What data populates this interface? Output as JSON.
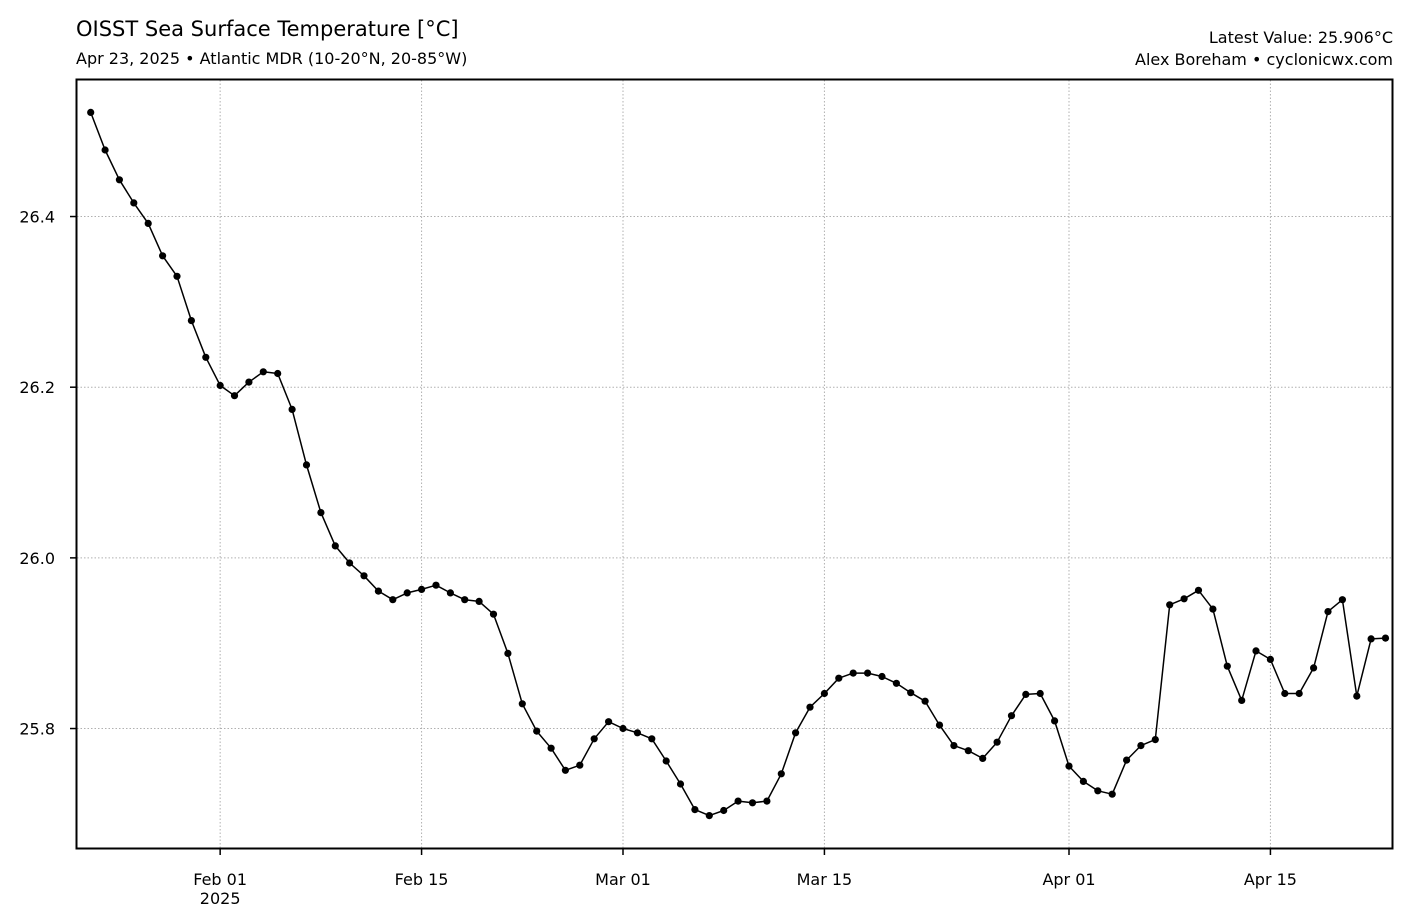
{
  "header": {
    "title": "OISST Sea Surface Temperature [°C]",
    "subtitle": "Apr 23, 2025 • Atlantic MDR (10-20°N, 20-85°W)",
    "latest_value": "Latest Value: 25.906°C",
    "credit": "Alex Boreham • cyclonicwx.com"
  },
  "chart_data": {
    "type": "line",
    "title": "OISST Sea Surface Temperature [°C]",
    "subtitle": "Apr 23, 2025 • Atlantic MDR (10-20°N, 20-85°W)",
    "xlabel": "",
    "ylabel": "",
    "xlim": [
      "2025-01-22",
      "2025-04-23"
    ],
    "ylim": [
      25.66,
      26.56
    ],
    "grid": true,
    "legend": "none",
    "line_color": "#000000",
    "marker": "circle",
    "x_ticks": [
      {
        "date": "2025-02-01",
        "label": "Feb 01",
        "sublabel": "2025"
      },
      {
        "date": "2025-02-15",
        "label": "Feb 15",
        "sublabel": ""
      },
      {
        "date": "2025-03-01",
        "label": "Mar 01",
        "sublabel": ""
      },
      {
        "date": "2025-03-15",
        "label": "Mar 15",
        "sublabel": ""
      },
      {
        "date": "2025-04-01",
        "label": "Apr 01",
        "sublabel": ""
      },
      {
        "date": "2025-04-15",
        "label": "Apr 15",
        "sublabel": ""
      }
    ],
    "y_ticks": [
      {
        "value": 25.8,
        "label": "25.8"
      },
      {
        "value": 26.0,
        "label": "26.0"
      },
      {
        "value": 26.2,
        "label": "26.2"
      },
      {
        "value": 26.4,
        "label": "26.4"
      }
    ],
    "series": [
      {
        "x": [
          "2025-01-23",
          "2025-01-24",
          "2025-01-25",
          "2025-01-26",
          "2025-01-27",
          "2025-01-28",
          "2025-01-29",
          "2025-01-30",
          "2025-01-31",
          "2025-02-01",
          "2025-02-02",
          "2025-02-03",
          "2025-02-04",
          "2025-02-05",
          "2025-02-06",
          "2025-02-07",
          "2025-02-08",
          "2025-02-09",
          "2025-02-10",
          "2025-02-11",
          "2025-02-12",
          "2025-02-13",
          "2025-02-14",
          "2025-02-15",
          "2025-02-16",
          "2025-02-17",
          "2025-02-18",
          "2025-02-19",
          "2025-02-20",
          "2025-02-21",
          "2025-02-22",
          "2025-02-23",
          "2025-02-24",
          "2025-02-25",
          "2025-02-26",
          "2025-02-27",
          "2025-02-28",
          "2025-03-01",
          "2025-03-02",
          "2025-03-03",
          "2025-03-04",
          "2025-03-05",
          "2025-03-06",
          "2025-03-07",
          "2025-03-08",
          "2025-03-09",
          "2025-03-10",
          "2025-03-11",
          "2025-03-12",
          "2025-03-13",
          "2025-03-14",
          "2025-03-15",
          "2025-03-16",
          "2025-03-17",
          "2025-03-18",
          "2025-03-19",
          "2025-03-20",
          "2025-03-21",
          "2025-03-22",
          "2025-03-23",
          "2025-03-24",
          "2025-03-25",
          "2025-03-26",
          "2025-03-27",
          "2025-03-28",
          "2025-03-29",
          "2025-03-30",
          "2025-03-31",
          "2025-04-01",
          "2025-04-02",
          "2025-04-03",
          "2025-04-04",
          "2025-04-05",
          "2025-04-06",
          "2025-04-07",
          "2025-04-08",
          "2025-04-09",
          "2025-04-10",
          "2025-04-11",
          "2025-04-12",
          "2025-04-13",
          "2025-04-14",
          "2025-04-15",
          "2025-04-16",
          "2025-04-17",
          "2025-04-18",
          "2025-04-19",
          "2025-04-20",
          "2025-04-21",
          "2025-04-22",
          "2025-04-23"
        ],
        "y": [
          26.522,
          26.478,
          26.443,
          26.416,
          26.392,
          26.354,
          26.33,
          26.278,
          26.235,
          26.202,
          26.19,
          26.206,
          26.218,
          26.216,
          26.174,
          26.109,
          26.053,
          26.014,
          25.994,
          25.979,
          25.961,
          25.951,
          25.959,
          25.963,
          25.968,
          25.959,
          25.951,
          25.949,
          25.934,
          25.888,
          25.829,
          25.797,
          25.777,
          25.751,
          25.757,
          25.788,
          25.808,
          25.8,
          25.795,
          25.788,
          25.762,
          25.735,
          25.705,
          25.698,
          25.704,
          25.715,
          25.713,
          25.715,
          25.747,
          25.795,
          25.825,
          25.841,
          25.859,
          25.865,
          25.865,
          25.861,
          25.853,
          25.842,
          25.832,
          25.804,
          25.78,
          25.774,
          25.765,
          25.784,
          25.815,
          25.84,
          25.841,
          25.809,
          25.756,
          25.738,
          25.727,
          25.723,
          25.763,
          25.78,
          25.787,
          25.945,
          25.952,
          25.962,
          25.94,
          25.873,
          25.833,
          25.891,
          25.881,
          25.841,
          25.841,
          25.871,
          25.937,
          25.951,
          25.838,
          25.905,
          25.906
        ]
      }
    ]
  }
}
